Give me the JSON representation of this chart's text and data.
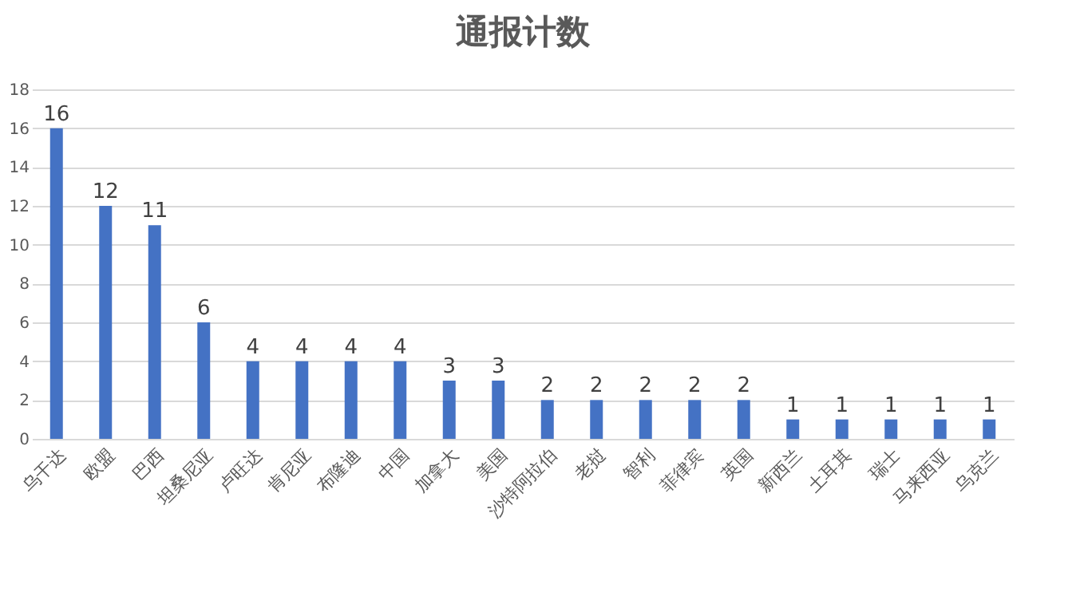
{
  "chart_data": {
    "type": "bar",
    "title": "通报计数",
    "categories": [
      "乌干达",
      "欧盟",
      "巴西",
      "坦桑尼亚",
      "卢旺达",
      "肯尼亚",
      "布隆迪",
      "中国",
      "加拿大",
      "美国",
      "沙特阿拉伯",
      "老挝",
      "智利",
      "菲律宾",
      "英国",
      "新西兰",
      "土耳其",
      "瑞士",
      "马来西亚",
      "乌克兰"
    ],
    "values": [
      16,
      12,
      11,
      6,
      4,
      4,
      4,
      4,
      3,
      3,
      2,
      2,
      2,
      2,
      2,
      1,
      1,
      1,
      1,
      1
    ],
    "color": "#4472c4",
    "ylim": [
      0,
      18
    ],
    "yticks": [
      0,
      2,
      4,
      6,
      8,
      10,
      12,
      14,
      16,
      18
    ],
    "grid": "y",
    "data_labels": true
  }
}
